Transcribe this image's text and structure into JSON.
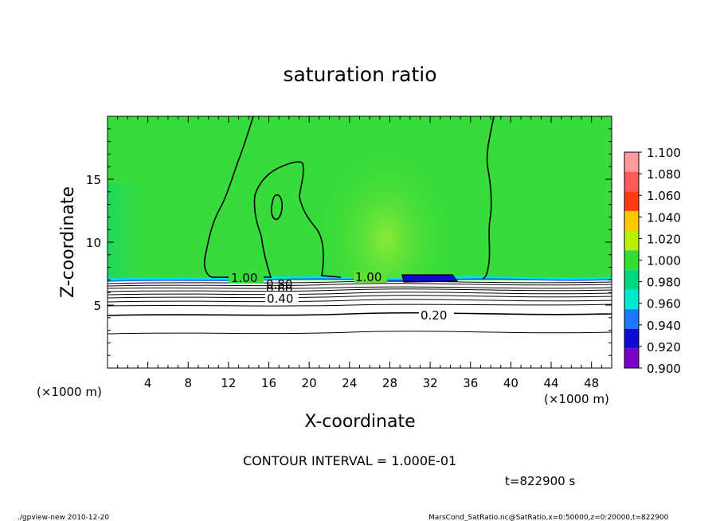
{
  "chart_data": {
    "type": "heatmap",
    "title": "saturation ratio",
    "xlabel": "X-coordinate",
    "ylabel": "Z-coordinate",
    "x_unit": "(×1000 m)",
    "y_unit": "(×1000 m)",
    "xlim": [
      0,
      50
    ],
    "ylim": [
      0,
      20
    ],
    "x_ticks": [
      "4",
      "8",
      "12",
      "16",
      "20",
      "24",
      "28",
      "32",
      "36",
      "40",
      "44",
      "48"
    ],
    "y_ticks": [
      "5",
      "10",
      "15"
    ],
    "colorbar": {
      "levels": [
        "1.100",
        "1.080",
        "1.060",
        "1.040",
        "1.020",
        "1.000",
        "0.980",
        "0.960",
        "0.940",
        "0.920",
        "0.900"
      ],
      "colors": [
        "#ff9a9a",
        "#ff5a5a",
        "#ff3a10",
        "#ffc800",
        "#b8f000",
        "#30e030",
        "#00d880",
        "#00e8d0",
        "#1e78ff",
        "#0c0cd2",
        "#7a00c8"
      ]
    },
    "contour_labels": [
      "1.00",
      "0.80",
      "0.60",
      "0.40",
      "0.20",
      "1.00"
    ],
    "contour_interval_text": "CONTOUR INTERVAL = 1.000E-01",
    "time_text": "t=822900  s",
    "footer_left": "./gpview-new   2010-12-20",
    "footer_right": "MarsCond_SatRatio.nc@SatRatio,x=0:50000,z=0:20000,t=822900"
  }
}
